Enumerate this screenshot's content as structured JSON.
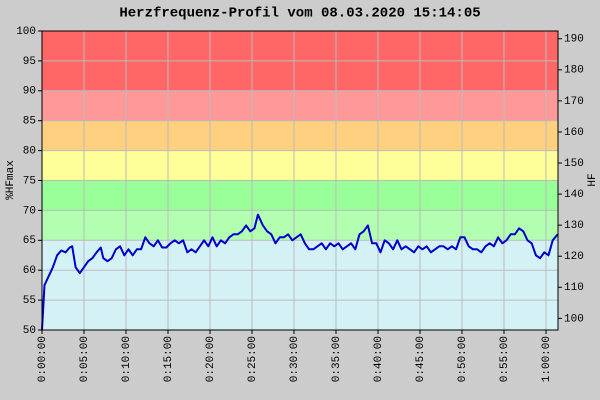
{
  "chart_data": {
    "type": "line",
    "title": "Herzfrequenz-Profil vom 08.03.2020 15:14:05",
    "y_label": "%HFmax",
    "y2_label": "HF",
    "color": "#0000cc",
    "grid": true,
    "xlim": [
      0,
      61.43
    ],
    "xticks": [
      {
        "value": 0,
        "label": "0:00:00"
      },
      {
        "value": 5,
        "label": "0:05:00"
      },
      {
        "value": 10,
        "label": "0:10:00"
      },
      {
        "value": 15,
        "label": "0:15:00"
      },
      {
        "value": 20,
        "label": "0:20:00"
      },
      {
        "value": 25,
        "label": "0:25:00"
      },
      {
        "value": 30,
        "label": "0:30:00"
      },
      {
        "value": 35,
        "label": "0:35:00"
      },
      {
        "value": 40,
        "label": "0:40:00"
      },
      {
        "value": 45,
        "label": "0:45:00"
      },
      {
        "value": 50,
        "label": "0:50:00"
      },
      {
        "value": 55,
        "label": "0:55:00"
      },
      {
        "value": 60,
        "label": "1:00:00"
      }
    ],
    "ylim": [
      50,
      100
    ],
    "yticks": [
      50,
      55,
      60,
      65,
      70,
      75,
      80,
      85,
      90,
      95,
      100
    ],
    "y2lim": [
      96.25,
      192.5
    ],
    "y2ticks": [
      100,
      110,
      120,
      130,
      140,
      150,
      160,
      170,
      180,
      190
    ],
    "zones": [
      {
        "from": 50,
        "to": 65,
        "color": "#d4f2f6"
      },
      {
        "from": 65,
        "to": 70,
        "color": "#b2ffb2"
      },
      {
        "from": 70,
        "to": 75,
        "color": "#99ff99"
      },
      {
        "from": 75,
        "to": 80,
        "color": "#ffff99"
      },
      {
        "from": 80,
        "to": 85,
        "color": "#ffd080"
      },
      {
        "from": 85,
        "to": 90,
        "color": "#ff9999"
      },
      {
        "from": 90,
        "to": 100,
        "color": "#ff6666"
      }
    ],
    "x": [
      0,
      0.3,
      0.8,
      1.3,
      1.8,
      2.3,
      2.8,
      3.3,
      3.6,
      4.0,
      4.5,
      5.0,
      5.5,
      6.0,
      6.5,
      7.0,
      7.3,
      7.8,
      8.3,
      8.8,
      9.3,
      9.8,
      10.3,
      10.8,
      11.3,
      11.8,
      12.3,
      12.8,
      13.3,
      13.8,
      14.3,
      14.8,
      15.3,
      15.8,
      16.3,
      16.8,
      17.3,
      17.8,
      18.3,
      18.8,
      19.3,
      19.8,
      20.3,
      20.8,
      21.3,
      21.8,
      22.3,
      22.8,
      23.3,
      23.8,
      24.3,
      24.8,
      25.3,
      25.7,
      26.3,
      26.8,
      27.3,
      27.8,
      28.3,
      28.8,
      29.3,
      29.8,
      30.3,
      30.8,
      31.3,
      31.8,
      32.3,
      32.8,
      33.3,
      33.8,
      34.3,
      34.8,
      35.3,
      35.8,
      36.3,
      36.8,
      37.3,
      37.8,
      38.3,
      38.8,
      39.3,
      39.8,
      40.3,
      40.8,
      41.3,
      41.8,
      42.3,
      42.8,
      43.3,
      43.8,
      44.3,
      44.8,
      45.3,
      45.8,
      46.3,
      46.8,
      47.3,
      47.8,
      48.3,
      48.8,
      49.3,
      49.8,
      50.3,
      50.8,
      51.3,
      51.8,
      52.3,
      52.8,
      53.3,
      53.8,
      54.3,
      54.8,
      55.3,
      55.8,
      56.3,
      56.8,
      57.3,
      57.8,
      58.3,
      58.8,
      59.3,
      59.8,
      60.3,
      60.8,
      61.4
    ],
    "values": [
      50,
      57.5,
      59,
      60.5,
      62.5,
      63.3,
      63,
      63.8,
      64,
      60.5,
      59.5,
      60.5,
      61.5,
      62,
      63,
      63.8,
      62,
      61.5,
      62,
      63.5,
      64,
      62.5,
      63.5,
      62.5,
      63.5,
      63.5,
      65.5,
      64.5,
      64,
      65,
      63.8,
      63.8,
      64.5,
      65,
      64.5,
      65,
      63,
      63.5,
      63,
      64,
      65,
      64,
      65.5,
      64,
      65,
      64.5,
      65.5,
      66,
      66,
      66.5,
      67.5,
      66.5,
      67,
      69.3,
      67.5,
      66.5,
      66,
      64.5,
      65.5,
      65.5,
      66,
      65,
      65.5,
      66,
      64.5,
      63.5,
      63.5,
      64,
      64.5,
      63.5,
      64.5,
      64,
      64.5,
      63.5,
      64,
      64.5,
      63.5,
      66,
      66.5,
      67.5,
      64.5,
      64.5,
      63,
      65,
      64.5,
      63.5,
      65,
      63.5,
      64,
      63.5,
      63,
      64,
      63.5,
      64,
      63,
      63.5,
      64,
      64,
      63.5,
      64,
      63.5,
      65.5,
      65.5,
      64,
      63.5,
      63.5,
      63,
      64,
      64.5,
      64,
      65.5,
      64.5,
      65,
      66,
      66,
      67,
      66.5,
      65,
      64.5,
      62.5,
      62,
      63,
      62.5,
      65,
      66
    ]
  }
}
